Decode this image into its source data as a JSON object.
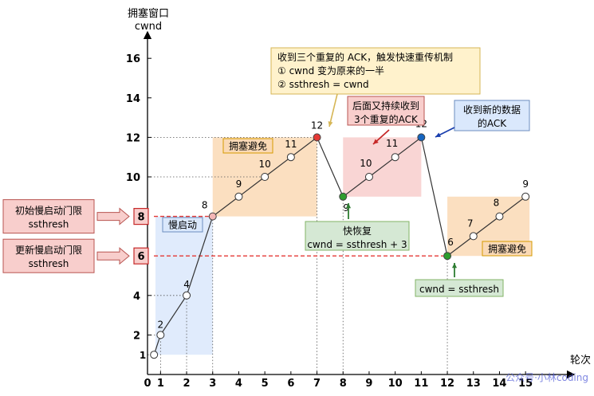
{
  "chart_data": {
    "type": "line",
    "title": "",
    "ylabel": "拥塞窗口",
    "ylabel_unit": "cwnd",
    "xlabel": "轮次",
    "x_ticks": [
      0,
      1,
      2,
      3,
      4,
      5,
      6,
      7,
      8,
      9,
      10,
      11,
      12,
      13,
      14,
      15
    ],
    "y_ticks": [
      2,
      4,
      6,
      8,
      10,
      12,
      14,
      16
    ],
    "y_origin_label": "1",
    "xlim": [
      0,
      15
    ],
    "ylim": [
      0,
      16
    ],
    "series": [
      {
        "points": [
          [
            0.25,
            1
          ],
          [
            0.5,
            2
          ],
          [
            1.5,
            4
          ],
          [
            2.5,
            8
          ],
          [
            3.5,
            9
          ],
          [
            4.5,
            10
          ],
          [
            5.5,
            11
          ],
          [
            6.5,
            12
          ],
          [
            7.5,
            9
          ],
          [
            8.5,
            10
          ],
          [
            9.5,
            11
          ],
          [
            10.5,
            12
          ],
          [
            11.5,
            6
          ],
          [
            12.5,
            7
          ],
          [
            13.5,
            8
          ],
          [
            14.5,
            9
          ]
        ],
        "labels": [
          "1",
          "2",
          "4",
          "8",
          "9",
          "10",
          "11",
          "12",
          "9",
          "10",
          "11",
          "12",
          "6",
          "7",
          "8",
          "9"
        ]
      }
    ],
    "special_points": {
      "ssthresh_initial": {
        "x": 2.5,
        "y": 8,
        "color": "#f4b6b6"
      },
      "three_dup_ack": {
        "x": 6.5,
        "y": 12,
        "color": "#e53935"
      },
      "fast_recovery": {
        "x": 7.5,
        "y": 9,
        "color": "#2e9d2e"
      },
      "new_ack": {
        "x": 10.5,
        "y": 12,
        "color": "#1565c0"
      },
      "cwnd_reset": {
        "x": 11.5,
        "y": 6,
        "color": "#2e9d2e"
      }
    },
    "ssthresh_lines": [
      {
        "y": 8,
        "label": "8",
        "note_lines": [
          "初始慢启动门限",
          "ssthresh"
        ]
      },
      {
        "y": 6,
        "label": "6",
        "note_lines": [
          "更新慢启动门限",
          "ssthresh"
        ]
      }
    ],
    "regions": [
      {
        "name": "慢启动",
        "x0": 0,
        "x1": 2.5,
        "y0": 1,
        "y1": 8,
        "color": "#dae8fc"
      },
      {
        "name": "拥塞避免",
        "x0": 2.5,
        "x1": 6.5,
        "y0": 8,
        "y1": 12,
        "color": "#fad9b5"
      },
      {
        "name": "",
        "x0": 7.5,
        "x1": 10.5,
        "y0": 9,
        "y1": 12,
        "color": "#f8cecc"
      },
      {
        "name": "拥塞避免",
        "x0": 11.5,
        "x1": 14.5,
        "y0": 6,
        "y1": 9,
        "color": "#fad9b5"
      }
    ],
    "annotations": {
      "triple_ack": [
        "收到三个重复的 ACK，触发快速重传机制",
        "① cwnd 变为原来的一半",
        "② ssthresh = cwnd"
      ],
      "continue_dup": [
        "后面又持续收到",
        "3个重复的ACK"
      ],
      "new_data": [
        "收到新的数据",
        "的ACK"
      ],
      "fast_recovery": [
        "快恢复",
        "cwnd = ssthresh + 3"
      ],
      "reset": [
        "cwnd = ssthresh"
      ]
    }
  },
  "watermark": "公众号·小林coding",
  "colors": {
    "line": "#333333",
    "red_dash": "#e53935",
    "arrow_green": "#2e7d32",
    "arrow_red": "#c62828",
    "arrow_blue": "#1a3fae",
    "callout_yellow": "#fff2cc",
    "callout_yellow_border": "#d6b656",
    "callout_green": "#d5e8d4",
    "callout_green_border": "#82b366",
    "callout_pink": "#f8cecc",
    "callout_pink_border": "#b85450",
    "callout_blue": "#dae8fc",
    "callout_blue_border": "#6c8ebf",
    "orange_label_bg": "#fad9b5",
    "blue_label_bg": "#dae8fc"
  }
}
